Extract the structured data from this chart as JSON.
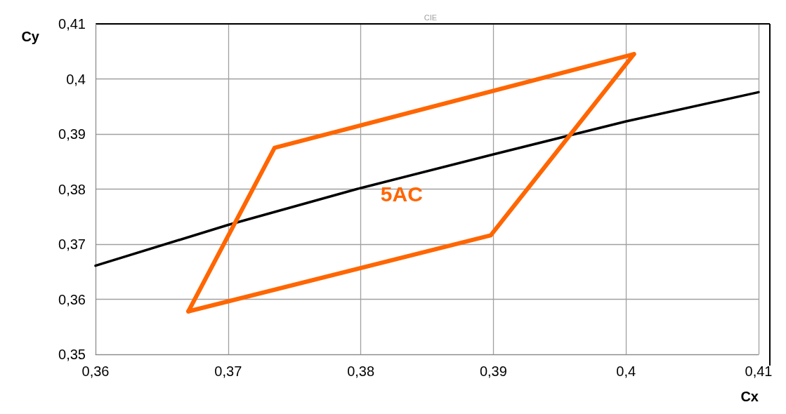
{
  "chart_data": {
    "type": "line",
    "title": "CIE",
    "xlabel": "Cx",
    "ylabel": "Cy",
    "xlim": [
      0.36,
      0.41
    ],
    "ylim": [
      0.35,
      0.41
    ],
    "xticks": [
      {
        "value": 0.36,
        "label": "0,36"
      },
      {
        "value": 0.37,
        "label": "0,37"
      },
      {
        "value": 0.38,
        "label": "0,38"
      },
      {
        "value": 0.39,
        "label": "0,39"
      },
      {
        "value": 0.4,
        "label": "0,4"
      },
      {
        "value": 0.41,
        "label": "0,41"
      }
    ],
    "yticks": [
      {
        "value": 0.35,
        "label": "0,35"
      },
      {
        "value": 0.36,
        "label": "0,36"
      },
      {
        "value": 0.37,
        "label": "0,37"
      },
      {
        "value": 0.38,
        "label": "0,38"
      },
      {
        "value": 0.39,
        "label": "0,39"
      },
      {
        "value": 0.4,
        "label": "0,4"
      },
      {
        "value": 0.41,
        "label": "0,41"
      }
    ],
    "grid": true,
    "legend": false,
    "marker": "none",
    "line_style": "solid",
    "series": [
      {
        "color": "#000000",
        "x": [
          0.36,
          0.37,
          0.38,
          0.39,
          0.4,
          0.41
        ],
        "values": [
          0.3661,
          0.3735,
          0.3802,
          0.3863,
          0.3923,
          0.3976
        ]
      },
      {
        "name": "5AC",
        "color": "#ff6600",
        "x": [
          0.367,
          0.3735,
          0.4006
        ],
        "values": [
          0.3578,
          0.3875,
          0.4045
        ]
      },
      {
        "color": "#ff6600",
        "x": [
          0.367,
          0.3898,
          0.4006
        ],
        "values": [
          0.3578,
          0.3716,
          0.4045
        ]
      }
    ]
  }
}
